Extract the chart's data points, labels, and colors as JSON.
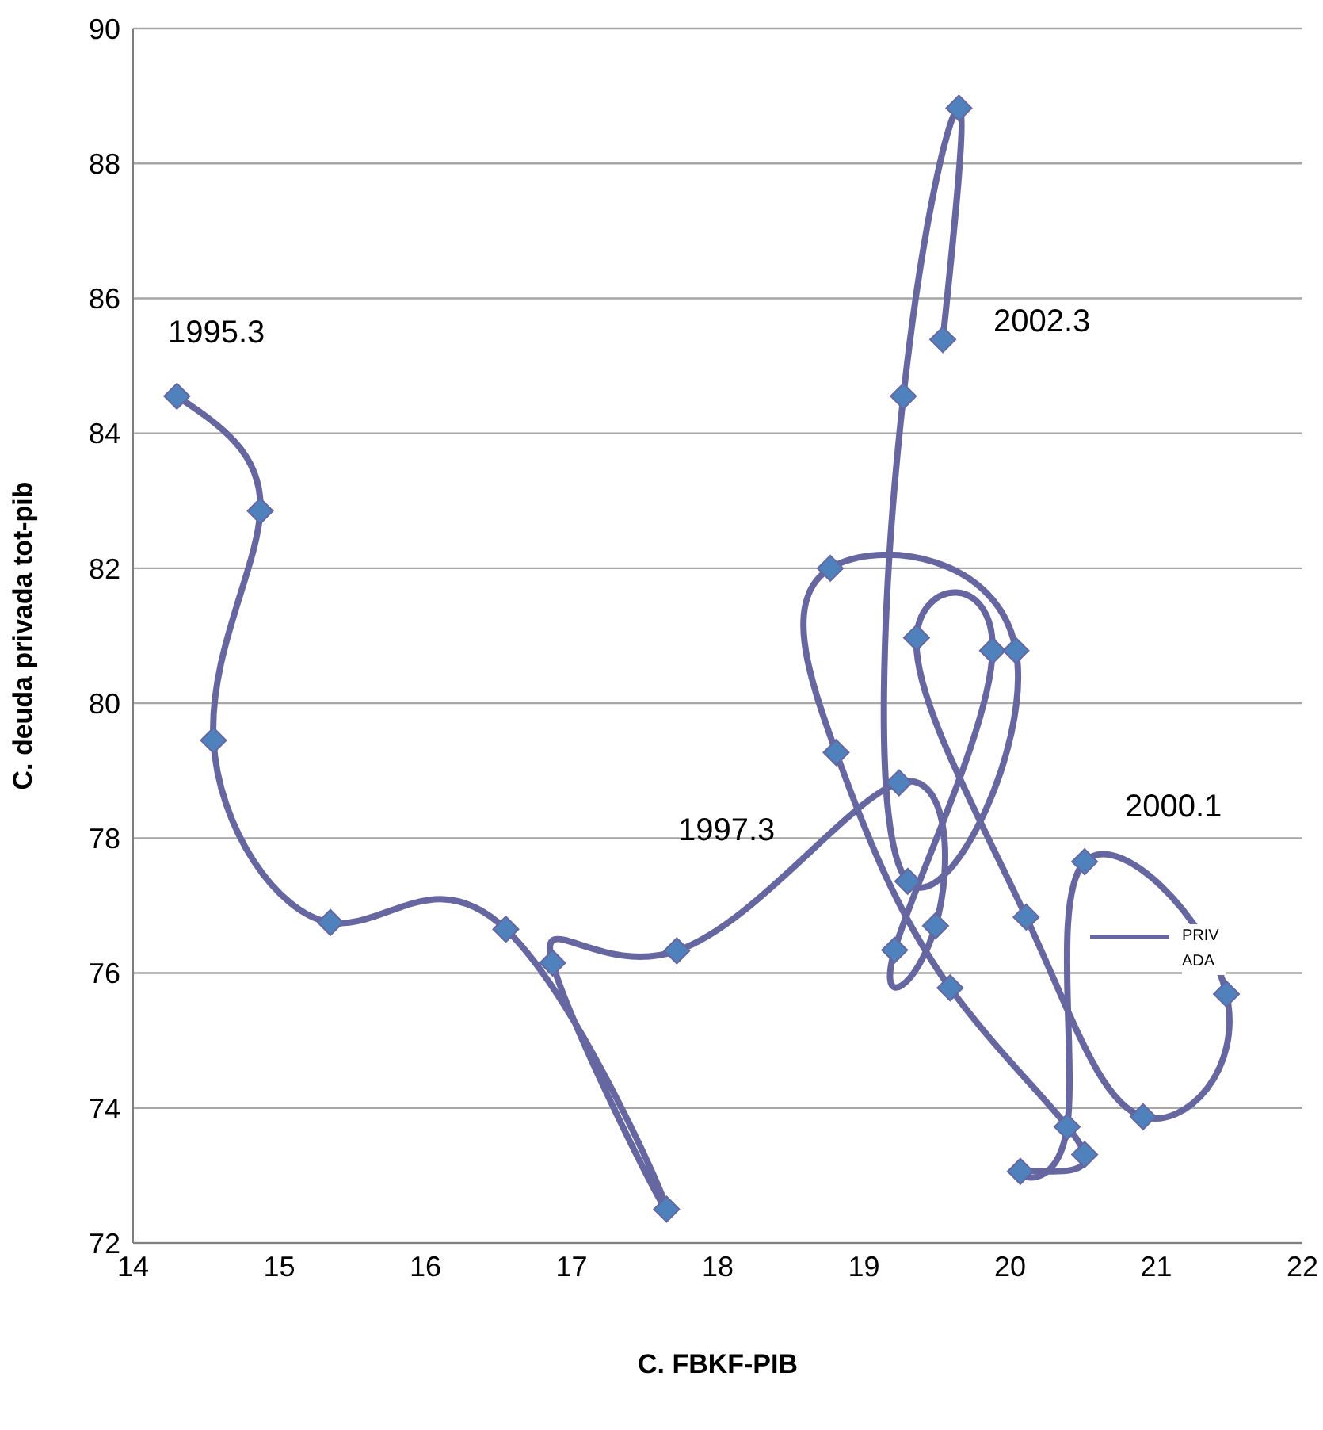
{
  "chart_data": {
    "type": "line",
    "xlabel": "C. FBKF-PIB",
    "ylabel": "C. deuda privada tot-pib",
    "xlim": [
      14,
      22
    ],
    "xticks": [
      14,
      15,
      16,
      17,
      18,
      19,
      20,
      21,
      22
    ],
    "ylim": [
      72,
      90
    ],
    "yticks": [
      72,
      74,
      76,
      78,
      80,
      82,
      84,
      86,
      88,
      90
    ],
    "grid": "y",
    "legend": "right",
    "marker": "diamond",
    "line_style": "solid",
    "series": [
      {
        "name": "PRIVADA",
        "color": "#6667a0",
        "x": [
          14.3,
          14.87,
          14.55,
          15.35,
          16.55,
          17.65,
          16.87,
          17.72,
          19.24,
          19.49,
          19.21,
          19.88,
          19.36,
          20.11,
          20.91,
          21.48,
          20.51,
          20.39,
          20.07,
          20.51,
          19.59,
          18.81,
          18.77,
          20.04,
          19.3,
          19.27,
          19.65,
          19.54
        ],
        "values": [
          84.55,
          82.85,
          79.45,
          76.75,
          76.65,
          72.5,
          76.15,
          76.33,
          78.82,
          76.7,
          76.34,
          80.78,
          80.97,
          76.83,
          73.87,
          75.69,
          77.65,
          73.72,
          73.06,
          73.31,
          75.78,
          79.27,
          82.0,
          80.78,
          77.36,
          84.55,
          88.82,
          85.39
        ]
      }
    ],
    "annotations": [
      "1995.3",
      "1997.3",
      "2000.1",
      "2002.3"
    ]
  }
}
